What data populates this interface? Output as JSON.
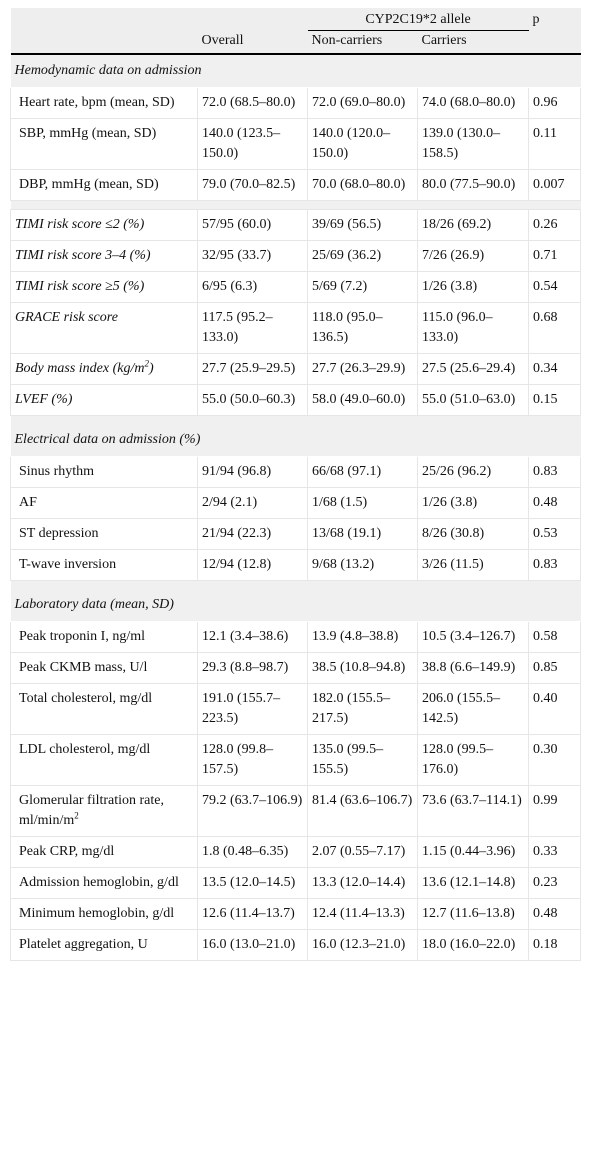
{
  "header": {
    "group_label": "CYP2C19*2 allele",
    "p_label": "p",
    "overall_label": "Overall",
    "noncarriers_label": "Non-carriers",
    "carriers_label": "Carriers"
  },
  "sections": [
    {
      "title": "Hemodynamic data on admission",
      "rows": [
        {
          "label": "Heart rate, bpm (mean, SD)",
          "overall": "72.0 (68.5–80.0)",
          "noncarriers": "72.0 (69.0–80.0)",
          "carriers": "74.0 (68.0–80.0)",
          "p": "0.96"
        },
        {
          "label": "SBP, mmHg (mean, SD)",
          "overall": "140.0 (123.5–150.0)",
          "noncarriers": "140.0 (120.0–150.0)",
          "carriers": "139.0 (130.0–158.5)",
          "p": "0.11"
        },
        {
          "label": "DBP, mmHg (mean, SD)",
          "overall": "79.0 (70.0–82.5)",
          "noncarriers": "70.0 (68.0–80.0)",
          "carriers": "80.0 (77.5–90.0)",
          "p": "0.007"
        }
      ]
    },
    {
      "title": "",
      "rows": [
        {
          "label": "TIMI risk score ≤2 (%)",
          "overall": "57/95 (60.0)",
          "noncarriers": "39/69 (56.5)",
          "carriers": "18/26 (69.2)",
          "p": "0.26"
        },
        {
          "label": "TIMI risk score 3–4 (%)",
          "overall": "32/95 (33.7)",
          "noncarriers": "25/69 (36.2)",
          "carriers": "7/26 (26.9)",
          "p": "0.71"
        },
        {
          "label": "TIMI risk score ≥5 (%)",
          "overall": "6/95 (6.3)",
          "noncarriers": "5/69 (7.2)",
          "carriers": "1/26 (3.8)",
          "p": "0.54"
        },
        {
          "label": "GRACE risk score",
          "overall": "117.5 (95.2–133.0)",
          "noncarriers": "118.0 (95.0–136.5)",
          "carriers": "115.0 (96.0–133.0)",
          "p": "0.68"
        },
        {
          "label": "Body mass index (kg/m",
          "label_sup": "2",
          "label_tail": ")",
          "overall": "27.7 (25.9–29.5)",
          "noncarriers": "27.7 (26.3–29.9)",
          "carriers": "27.5 (25.6–29.4)",
          "p": "0.34"
        },
        {
          "label": "LVEF (%)",
          "overall": "55.0 (50.0–60.3)",
          "noncarriers": "58.0 (49.0–60.0)",
          "carriers": "55.0 (51.0–63.0)",
          "p": "0.15"
        }
      ]
    },
    {
      "title": "Electrical data on admission (%)",
      "rows": [
        {
          "label": "Sinus rhythm",
          "overall": "91/94 (96.8)",
          "noncarriers": "66/68 (97.1)",
          "carriers": "25/26 (96.2)",
          "p": "0.83"
        },
        {
          "label": "AF",
          "overall": "2/94 (2.1)",
          "noncarriers": "1/68 (1.5)",
          "carriers": "1/26 (3.8)",
          "p": "0.48"
        },
        {
          "label": "ST depression",
          "overall": "21/94 (22.3)",
          "noncarriers": "13/68 (19.1)",
          "carriers": "8/26 (30.8)",
          "p": "0.53"
        },
        {
          "label": "T-wave inversion",
          "overall": "12/94 (12.8)",
          "noncarriers": "9/68 (13.2)",
          "carriers": "3/26 (11.5)",
          "p": "0.83"
        }
      ]
    },
    {
      "title": "Laboratory data (mean, SD)",
      "rows": [
        {
          "label": "Peak troponin I, ng/ml",
          "overall": "12.1 (3.4–38.6)",
          "noncarriers": "13.9 (4.8–38.8)",
          "carriers": "10.5 (3.4–126.7)",
          "p": "0.58"
        },
        {
          "label": "Peak CKMB mass, U/l",
          "overall": "29.3 (8.8–98.7)",
          "noncarriers": "38.5 (10.8–94.8)",
          "carriers": "38.8 (6.6–149.9)",
          "p": "0.85"
        },
        {
          "label": "Total cholesterol, mg/dl",
          "overall": "191.0 (155.7–223.5)",
          "noncarriers": "182.0 (155.5–217.5)",
          "carriers": "206.0 (155.5–142.5)",
          "p": "0.40"
        },
        {
          "label": "LDL cholesterol, mg/dl",
          "overall": "128.0 (99.8–157.5)",
          "noncarriers": "135.0 (99.5–155.5)",
          "carriers": "128.0 (99.5–176.0)",
          "p": "0.30"
        },
        {
          "label": "Glomerular filtration rate, ml/min/m",
          "label_sup": "2",
          "label_tail": "",
          "overall": "79.2 (63.7–106.9)",
          "noncarriers": "81.4 (63.6–106.7)",
          "carriers": "73.6 (63.7–114.1)",
          "p": "0.99"
        },
        {
          "label": "Peak CRP, mg/dl",
          "overall": "1.8 (0.48–6.35)",
          "noncarriers": "2.07 (0.55–7.17)",
          "carriers": "1.15 (0.44–3.96)",
          "p": "0.33"
        },
        {
          "label": "Admission hemoglobin, g/dl",
          "overall": "13.5 (12.0–14.5)",
          "noncarriers": "13.3 (12.0–14.4)",
          "carriers": "13.6 (12.1–14.8)",
          "p": "0.23"
        },
        {
          "label": "Minimum hemoglobin, g/dl",
          "overall": "12.6 (11.4–13.7)",
          "noncarriers": "12.4 (11.4–13.3)",
          "carriers": "12.7 (11.6–13.8)",
          "p": "0.48"
        },
        {
          "label": "Platelet aggregation, U",
          "overall": "16.0 (13.0–21.0)",
          "noncarriers": "16.0 (12.3–21.0)",
          "carriers": "18.0 (16.0–22.0)",
          "p": "0.18"
        }
      ]
    }
  ]
}
